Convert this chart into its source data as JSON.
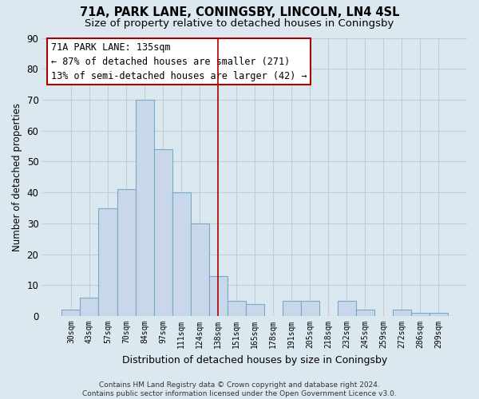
{
  "title": "71A, PARK LANE, CONINGSBY, LINCOLN, LN4 4SL",
  "subtitle": "Size of property relative to detached houses in Coningsby",
  "xlabel": "Distribution of detached houses by size in Coningsby",
  "ylabel": "Number of detached properties",
  "bar_labels": [
    "30sqm",
    "43sqm",
    "57sqm",
    "70sqm",
    "84sqm",
    "97sqm",
    "111sqm",
    "124sqm",
    "138sqm",
    "151sqm",
    "165sqm",
    "178sqm",
    "191sqm",
    "205sqm",
    "218sqm",
    "232sqm",
    "245sqm",
    "259sqm",
    "272sqm",
    "286sqm",
    "299sqm"
  ],
  "bar_values": [
    2,
    6,
    35,
    41,
    70,
    54,
    40,
    30,
    13,
    5,
    4,
    0,
    5,
    5,
    0,
    5,
    2,
    0,
    2,
    1,
    1
  ],
  "bar_color": "#c8d8ea",
  "bar_edge_color": "#7aa8c8",
  "vline_x": 8,
  "vline_color": "#aa0000",
  "ylim": [
    0,
    90
  ],
  "yticks": [
    0,
    10,
    20,
    30,
    40,
    50,
    60,
    70,
    80,
    90
  ],
  "annotation_title": "71A PARK LANE: 135sqm",
  "annotation_line1": "← 87% of detached houses are smaller (271)",
  "annotation_line2": "13% of semi-detached houses are larger (42) →",
  "annotation_box_color": "#ffffff",
  "annotation_box_edge_color": "#aa0000",
  "footer_line1": "Contains HM Land Registry data © Crown copyright and database right 2024.",
  "footer_line2": "Contains public sector information licensed under the Open Government Licence v3.0.",
  "bg_color": "#dce8f0",
  "grid_color": "#c0ccd8",
  "title_fontsize": 10.5,
  "subtitle_fontsize": 9.5
}
